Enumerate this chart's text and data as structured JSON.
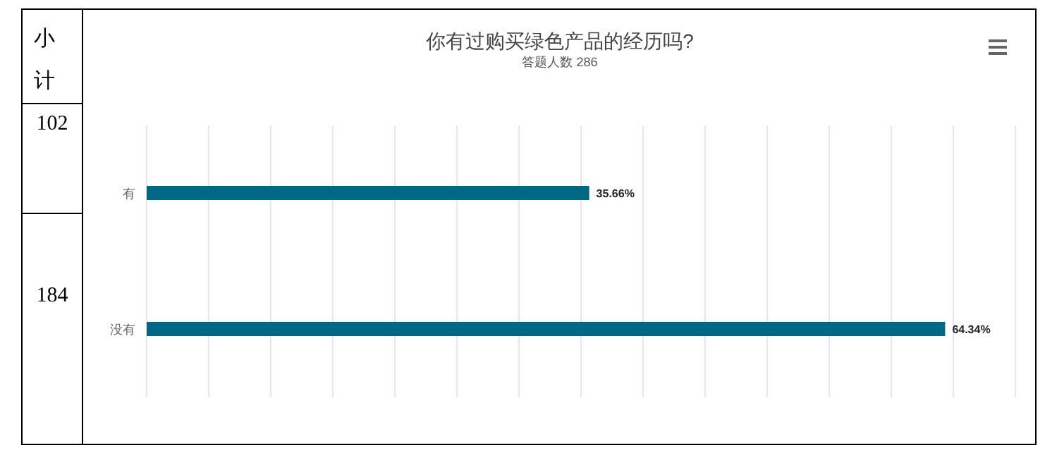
{
  "chart_data": {
    "type": "bar",
    "orientation": "horizontal",
    "title": "你有过购买绿色产品的经历吗?",
    "subtitle": "答题人数 286",
    "categories": [
      "有",
      "没有"
    ],
    "values": [
      35.66,
      64.34
    ],
    "color": "#006884",
    "value_labels": [
      "35.66%",
      "64.34%"
    ],
    "xlim": [
      0,
      70
    ],
    "tick_labels": "y",
    "grid": "x",
    "legend": false,
    "annotations": [
      "小计",
      "102",
      "184"
    ]
  }
}
